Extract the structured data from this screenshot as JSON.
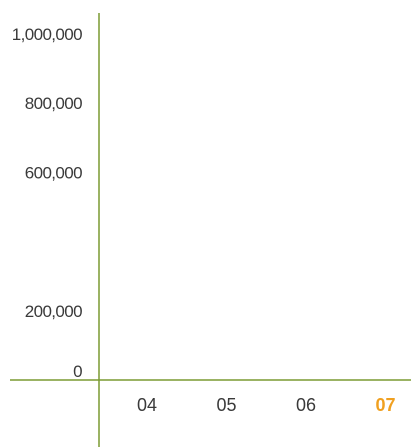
{
  "chart_data": {
    "type": "bar",
    "title": "",
    "xlabel": "",
    "ylabel": "",
    "categories": [
      "04",
      "05",
      "06",
      "07"
    ],
    "highlighted_category": "07",
    "y_ticks": [
      {
        "value": 0,
        "label": "0"
      },
      {
        "value": 200000,
        "label": "200,000"
      },
      {
        "value": 600000,
        "label": "600,000"
      },
      {
        "value": 800000,
        "label": "800,000"
      },
      {
        "value": 1000000,
        "label": "1,000,000"
      }
    ],
    "ylim": [
      0,
      1000000
    ],
    "grid": false,
    "series": [],
    "colors": {
      "axis": "#7a9a30",
      "tick_text": "#3a3a3a",
      "highlight": "#f0a020"
    }
  }
}
